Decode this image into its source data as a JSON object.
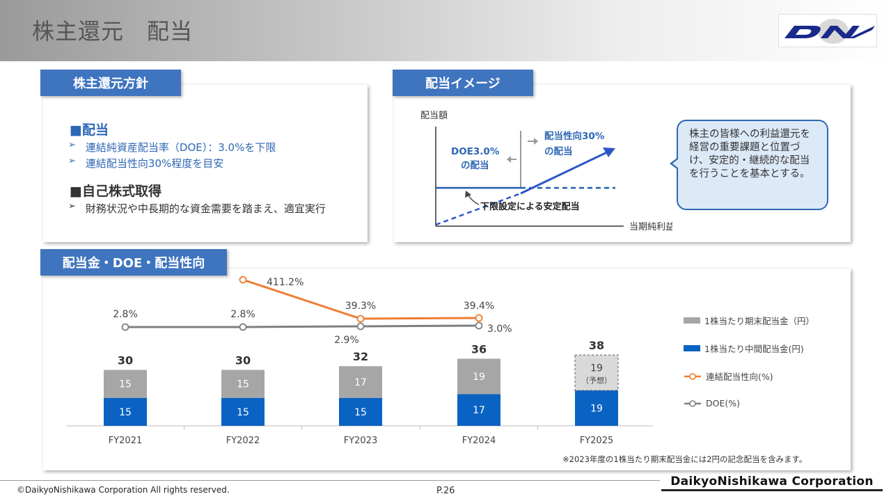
{
  "page_title": "株主還元　配当",
  "logo": {
    "text": "DN",
    "color": "#1a2a8a"
  },
  "policy": {
    "tab_label": "株主還元方針",
    "dividend_heading": "■配当",
    "dividend_items": [
      "連結純資産配当率（DOE）：3.0%を下限",
      "連結配当性向30%程度を目安"
    ],
    "buyback_heading": "■自己株式取得",
    "buyback_items": [
      "財務状況や中長期的な資金需要を踏まえ、適宜実行"
    ],
    "bullet_symbol": "➢"
  },
  "image": {
    "tab_label": "配当イメージ",
    "y_axis_label": "配当額",
    "x_axis_label": "当期純利益",
    "doe_label_1": "DOE3.0%",
    "doe_label_2": "の配当",
    "payout_label_1": "配当性向30%",
    "payout_label_2": "の配当",
    "floor_label": "下限設定による安定配当",
    "bubble_text": "株主の皆様への利益還元を経営の重要課題と位置づけ、安定的・継続的な配当を行うことを基本とする。"
  },
  "chart_section": {
    "tab_label": "配当金・DOE・配当性向"
  },
  "chart_data": {
    "type": "bar",
    "categories": [
      "FY2021",
      "FY2022",
      "FY2023",
      "FY2024",
      "FY2025"
    ],
    "series": [
      {
        "name": "1株当たり中間配当金(円)",
        "values": [
          15,
          15,
          15,
          17,
          19
        ],
        "color": "#0a63c2"
      },
      {
        "name": "1株当たり期末配当金（円）",
        "values": [
          15,
          15,
          17,
          19,
          19
        ],
        "color": "#a6a6a6"
      }
    ],
    "totals": [
      30,
      30,
      32,
      36,
      38
    ],
    "forecast_index": 4,
    "forecast_label": "（予想）",
    "lines": [
      {
        "name": "連結配当性向(%)",
        "values": [
          null,
          411.2,
          39.3,
          39.4,
          null
        ],
        "labels": [
          "",
          "411.2%",
          "39.3%",
          "39.4%",
          ""
        ],
        "color": "#ed7d31"
      },
      {
        "name": "DOE(%)",
        "values": [
          2.8,
          2.8,
          2.9,
          3.0,
          null
        ],
        "labels": [
          "2.8%",
          "2.8%",
          "2.9%",
          "3.0%",
          ""
        ],
        "color": "#7f7f7f"
      }
    ],
    "legend": [
      {
        "label": "1株当たり期末配当金（円）",
        "kind": "bar",
        "color": "#a6a6a6"
      },
      {
        "label": "1株当たり中間配当金(円)",
        "kind": "bar",
        "color": "#0a63c2"
      },
      {
        "label": "連結配当性向(%)",
        "kind": "line",
        "color": "#ed7d31"
      },
      {
        "label": "DOE(%)",
        "kind": "line",
        "color": "#7f7f7f"
      }
    ]
  },
  "note": "※2023年度の1株当たり期末配当金には2円の記念配当を含みます。",
  "footer": {
    "copyright": "©DaikyoNishikawa Corporation All rights reserved.",
    "page": "P.26",
    "company": "DaikyoNishikawa Corporation"
  }
}
